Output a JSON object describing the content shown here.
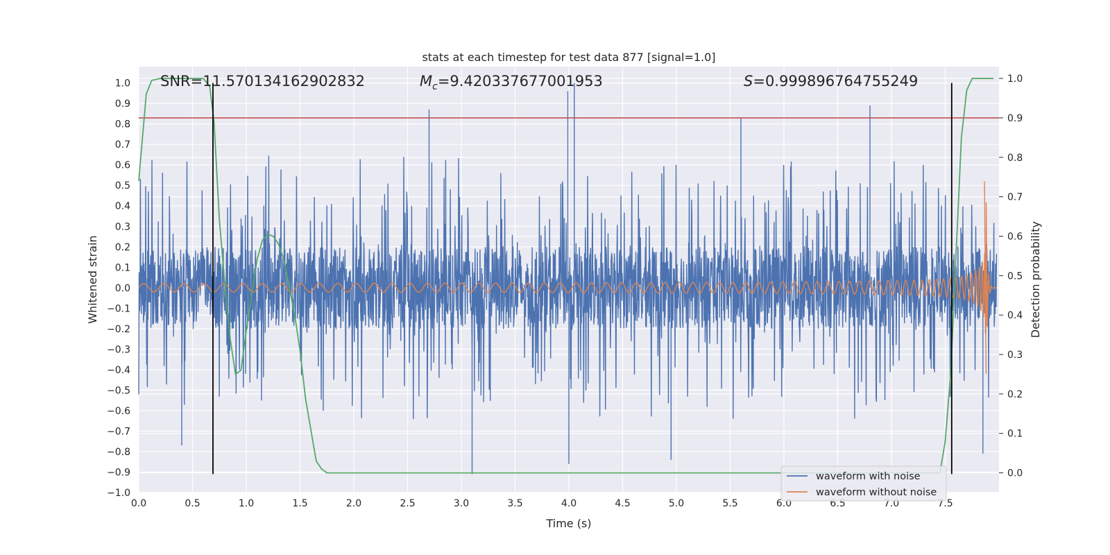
{
  "chart_data": {
    "type": "line",
    "title": "stats at each timestep for test data 877 [signal=1.0]",
    "xlabel": "Time (s)",
    "ylabel": "Whitened strain",
    "y2label": "Detection probability",
    "xlim": [
      0.0,
      8.0
    ],
    "ylim": [
      -1.0,
      1.08
    ],
    "y2lim": [
      -0.05,
      1.03
    ],
    "xticks": [
      "0.0",
      "0.5",
      "1.0",
      "1.5",
      "2.0",
      "2.5",
      "3.0",
      "3.5",
      "4.0",
      "4.5",
      "5.0",
      "5.5",
      "6.0",
      "6.5",
      "7.0",
      "7.5"
    ],
    "yticks": [
      "−1.0",
      "−0.9",
      "−0.8",
      "−0.7",
      "−0.6",
      "−0.5",
      "−0.4",
      "−0.3",
      "−0.2",
      "−0.1",
      "0.0",
      "0.1",
      "0.2",
      "0.3",
      "0.4",
      "0.5",
      "0.6",
      "0.7",
      "0.8",
      "0.9",
      "1.0"
    ],
    "y2ticks": [
      "0.0",
      "0.1",
      "0.2",
      "0.3",
      "0.4",
      "0.5",
      "0.6",
      "0.7",
      "0.8",
      "0.9",
      "1.0"
    ],
    "annotations": {
      "snr": "SNR=11.570134162902832",
      "mc_symbol": "M",
      "mc_sub": "c",
      "mc_value": "=9.420337677001953",
      "s_symbol": "S",
      "s_value": "=0.999896764755249"
    },
    "threshold": {
      "axis": "right",
      "value": 0.9
    },
    "vertical_lines_x": [
      0.69,
      7.56
    ],
    "vertical_lines_yrange": [
      -0.91,
      1.0
    ],
    "noise_envelope": {
      "seed": 877,
      "core_amplitude": 0.2,
      "typical_peak": 0.45,
      "peaks": [
        {
          "x": 2.7,
          "y": 0.87
        },
        {
          "x": 4.05,
          "y": 1.0
        },
        {
          "x": 3.99,
          "y": 0.96
        },
        {
          "x": 5.6,
          "y": 0.83
        },
        {
          "x": 6.8,
          "y": 0.89
        },
        {
          "x": 3.1,
          "y": -0.91
        },
        {
          "x": 0.4,
          "y": -0.77
        },
        {
          "x": 4.0,
          "y": -0.86
        },
        {
          "x": 4.95,
          "y": -0.84
        },
        {
          "x": 7.85,
          "y": -0.81
        }
      ]
    },
    "clean_waveform": {
      "start_amplitude": 0.02,
      "merger_time": 7.88,
      "peak_positive": 0.52,
      "peak_negative": -0.42
    },
    "series": [
      {
        "name": "waveform with noise",
        "color": "#4c72b0",
        "axis": "left"
      },
      {
        "name": "waveform without noise",
        "color": "#dd8452",
        "axis": "left"
      },
      {
        "name": "detection probability",
        "color": "#55a868",
        "axis": "right",
        "x": [
          0.0,
          0.07,
          0.12,
          0.2,
          0.3,
          0.4,
          0.5,
          0.6,
          0.66,
          0.7,
          0.75,
          0.8,
          0.85,
          0.9,
          0.95,
          1.0,
          1.05,
          1.1,
          1.15,
          1.2,
          1.25,
          1.3,
          1.35,
          1.4,
          1.45,
          1.5,
          1.55,
          1.6,
          1.65,
          1.7,
          1.75,
          1.8,
          2.0,
          3.0,
          4.0,
          5.0,
          6.0,
          7.0,
          7.45,
          7.5,
          7.55,
          7.6,
          7.65,
          7.7,
          7.75,
          7.8,
          7.85,
          7.9,
          7.95
        ],
        "y": [
          0.74,
          0.96,
          0.995,
          1.0,
          1.0,
          1.0,
          1.0,
          1.0,
          0.98,
          0.89,
          0.64,
          0.48,
          0.34,
          0.25,
          0.26,
          0.36,
          0.45,
          0.54,
          0.59,
          0.605,
          0.6,
          0.58,
          0.54,
          0.47,
          0.4,
          0.31,
          0.19,
          0.11,
          0.03,
          0.01,
          0.0,
          0.0,
          0.0,
          0.0,
          0.0,
          0.0,
          0.0,
          0.0,
          0.0,
          0.08,
          0.25,
          0.55,
          0.85,
          0.97,
          1.0,
          1.0,
          1.0,
          1.0,
          1.0
        ]
      },
      {
        "name": "threshold",
        "color": "#c44e52",
        "axis": "right"
      }
    ],
    "legend": {
      "position": "lower-right",
      "entries": [
        "waveform with noise",
        "waveform without noise"
      ]
    }
  }
}
